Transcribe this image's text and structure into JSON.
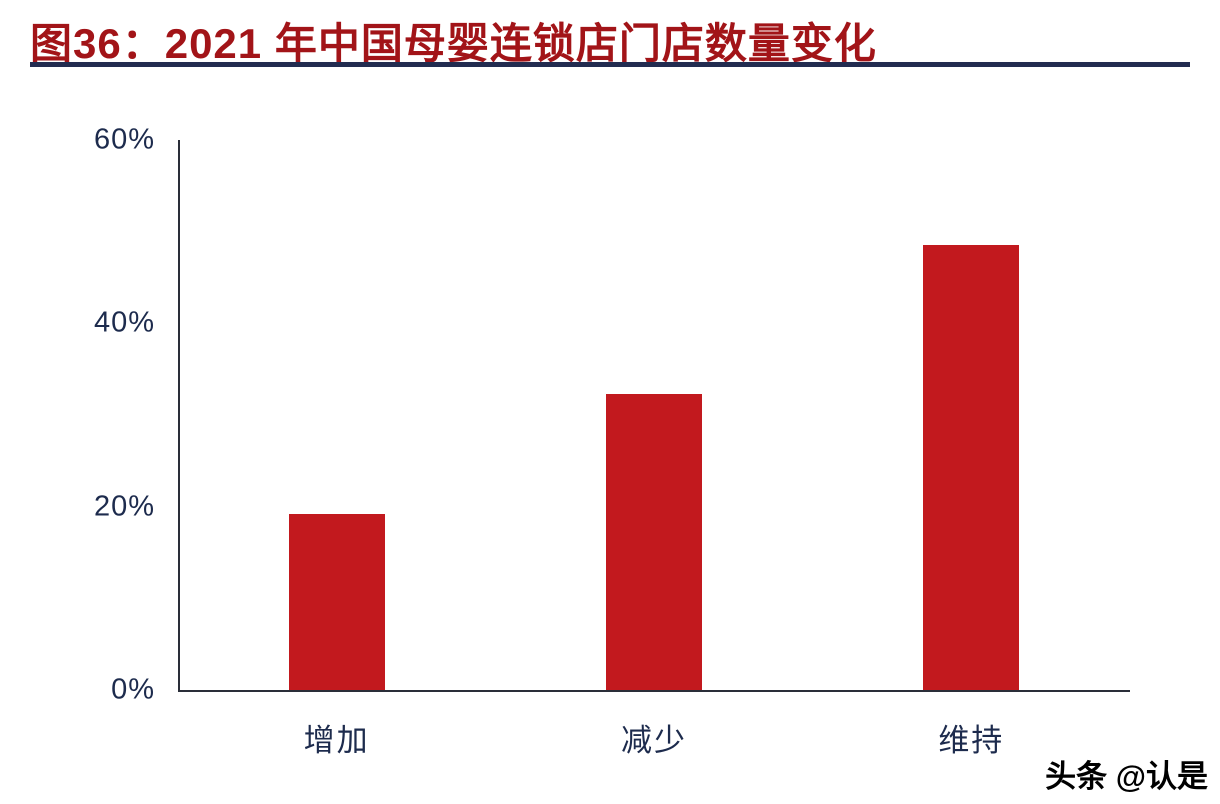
{
  "page": {
    "title": "图36：2021 年中国母婴连锁店门店数量变化",
    "watermark": "头条 @认是"
  },
  "colors": {
    "title_text": "#a21418",
    "title_divider": "#222c50",
    "bar_fill": "#c2191e",
    "axis_line": "#2a2e39",
    "tick_label": "#1d2b4d",
    "watermark_text": "#000000",
    "background": "#ffffff"
  },
  "chart_data": {
    "type": "bar",
    "title": "2021 年中国母婴连锁店门店数量变化",
    "categories": [
      "增加",
      "减少",
      "维持"
    ],
    "values": [
      19.2,
      32.3,
      48.5
    ],
    "xlabel": "",
    "ylabel": "",
    "ylim": [
      0,
      60
    ],
    "yticks": [
      0,
      20,
      40,
      60
    ],
    "ytick_labels": [
      "0%",
      "20%",
      "40%",
      "60%"
    ],
    "grid": false,
    "legend": "none",
    "bar_color": "#c2191e"
  }
}
